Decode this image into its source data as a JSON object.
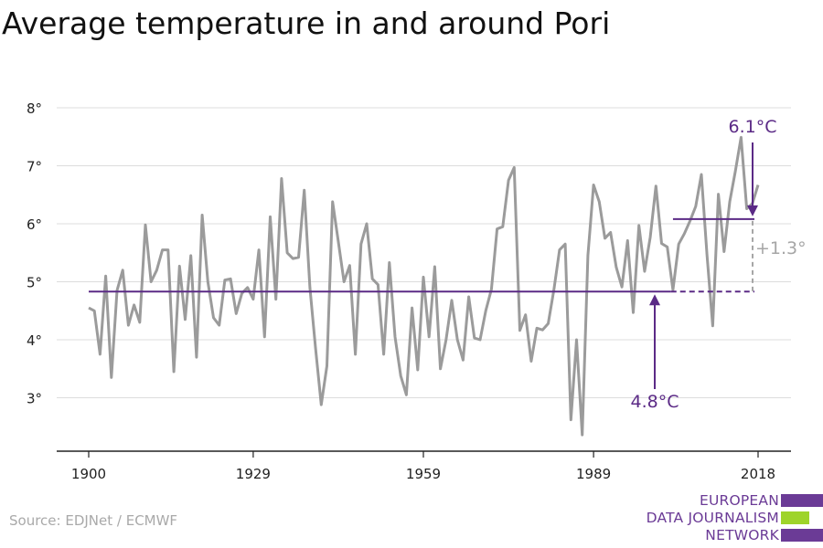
{
  "title": "Average temperature in and around Pori",
  "source": "Source: EDJNet / ECMWF",
  "logo": {
    "lines": [
      "EUROPEAN",
      "DATA JOURNALISM",
      "NETWORK"
    ],
    "colors": {
      "purple": "#6b3b96",
      "green": "#9ed42a"
    }
  },
  "colors": {
    "series": "#9b9b9b",
    "reference": "#5b2a86",
    "delta": "#a6a6a6",
    "grid": "#dcdcdc",
    "axis": "#222222"
  },
  "chart_data": {
    "type": "line",
    "title": "Average temperature in and around Pori",
    "xlabel": "",
    "ylabel": "",
    "xlim": [
      1900,
      2018
    ],
    "ylim": [
      2.2,
      8.2
    ],
    "grid": true,
    "x_ticks": [
      1900,
      1929,
      1959,
      1989,
      2018
    ],
    "y_ticks": [
      3,
      4,
      5,
      6,
      7,
      8
    ],
    "x_tick_labels": [
      "1900",
      "1929",
      "1959",
      "1989",
      "2018"
    ],
    "y_tick_labels": [
      "3°",
      "4°",
      "5°",
      "6°",
      "7°",
      "8°"
    ],
    "series": [
      {
        "x": [
          1900,
          1901,
          1902,
          1903,
          1904,
          1905,
          1906,
          1907,
          1908,
          1909,
          1910,
          1911,
          1912,
          1913,
          1914,
          1915,
          1916,
          1917,
          1918,
          1919,
          1920,
          1921,
          1922,
          1923,
          1924,
          1925,
          1926,
          1927,
          1928,
          1929,
          1930,
          1931,
          1932,
          1933,
          1934,
          1935,
          1936,
          1937,
          1938,
          1939,
          1940,
          1941,
          1942,
          1943,
          1944,
          1945,
          1946,
          1947,
          1948,
          1949,
          1950,
          1951,
          1952,
          1953,
          1954,
          1955,
          1956,
          1957,
          1958,
          1959,
          1960,
          1961,
          1962,
          1963,
          1964,
          1965,
          1966,
          1967,
          1968,
          1969,
          1970,
          1971,
          1972,
          1973,
          1974,
          1975,
          1976,
          1977,
          1978,
          1979,
          1980,
          1981,
          1982,
          1983,
          1984,
          1985,
          1986,
          1987,
          1988,
          1989,
          1990,
          1991,
          1992,
          1993,
          1994,
          1995,
          1996,
          1997,
          1998,
          1999,
          2000,
          2001,
          2002,
          2003,
          2004,
          2005,
          2006,
          2007,
          2008,
          2009,
          2010,
          2011,
          2012,
          2013,
          2014,
          2015,
          2016,
          2017,
          2018
        ],
        "values": [
          4.55,
          4.5,
          3.75,
          5.1,
          3.35,
          4.85,
          5.2,
          4.25,
          4.6,
          4.3,
          5.98,
          5.0,
          5.2,
          5.55,
          5.55,
          3.45,
          5.27,
          4.35,
          5.45,
          3.7,
          6.15,
          5.0,
          4.38,
          4.25,
          5.03,
          5.05,
          4.45,
          4.8,
          4.9,
          4.7,
          5.55,
          4.05,
          6.12,
          4.7,
          6.78,
          5.5,
          5.4,
          5.42,
          6.58,
          4.9,
          3.85,
          2.88,
          3.55,
          6.38,
          5.7,
          5.0,
          5.28,
          3.75,
          5.65,
          6.0,
          5.05,
          4.95,
          3.75,
          5.33,
          4.05,
          3.38,
          3.05,
          4.55,
          3.48,
          5.08,
          4.05,
          5.26,
          3.5,
          4.0,
          4.68,
          4.0,
          3.65,
          4.74,
          4.03,
          4.0,
          4.5,
          4.87,
          5.91,
          5.95,
          6.75,
          6.97,
          4.16,
          4.43,
          3.63,
          4.2,
          4.17,
          4.28,
          4.86,
          5.55,
          5.65,
          2.62,
          4.0,
          2.36,
          5.45,
          6.67,
          6.38,
          5.75,
          5.85,
          5.25,
          4.91,
          5.71,
          4.47,
          5.97,
          5.18,
          5.77,
          6.65,
          5.66,
          5.6,
          4.86,
          5.65,
          5.83,
          6.05,
          6.3,
          6.85,
          5.45,
          4.24,
          6.51,
          5.52,
          6.38,
          6.91,
          7.49,
          6.26,
          6.35,
          6.67
        ]
      }
    ],
    "reference_lines": [
      {
        "label": "4.8°C",
        "value": 4.83,
        "x_start": 1900,
        "x_end": 2002
      },
      {
        "label": "6.1°C",
        "value": 6.08,
        "x_start": 2003,
        "x_end": 2018
      }
    ],
    "annotations": {
      "difference": "+1.3°"
    }
  }
}
